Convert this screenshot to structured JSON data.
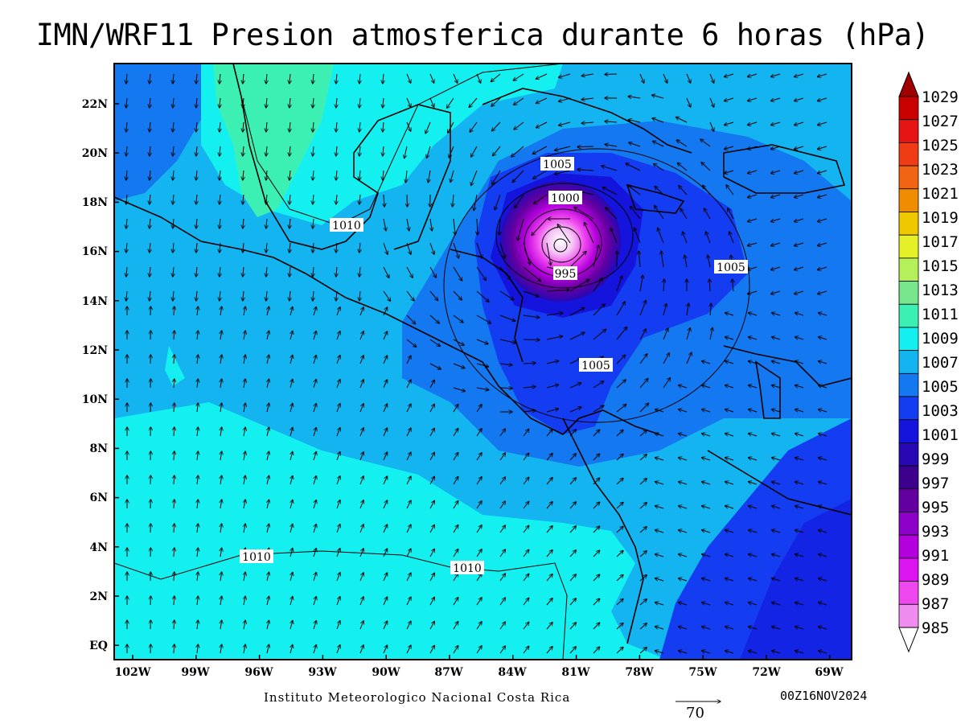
{
  "title": "IMN/WRF11 Presion atmosferica durante 6 horas (hPa)",
  "footer": {
    "institution": "Instituto Meteorologico Nacional Costa Rica",
    "timestamp": "00Z16NOV2024",
    "vector_reference": "70"
  },
  "axes": {
    "lat_ticks": [
      "22N",
      "20N",
      "18N",
      "16N",
      "14N",
      "12N",
      "10N",
      "8N",
      "6N",
      "4N",
      "2N",
      "EQ"
    ],
    "lon_ticks": [
      "102W",
      "99W",
      "96W",
      "93W",
      "90W",
      "87W",
      "84W",
      "81W",
      "78W",
      "75W",
      "72W",
      "69W"
    ]
  },
  "colorbar": {
    "levels": [
      "1029",
      "1027",
      "1025",
      "1023",
      "1021",
      "1019",
      "1017",
      "1015",
      "1013",
      "1011",
      "1009",
      "1007",
      "1005",
      "1003",
      "1001",
      "999",
      "997",
      "995",
      "993",
      "991",
      "989",
      "987",
      "985"
    ],
    "colors": [
      "#a00000",
      "#c80000",
      "#e61414",
      "#f03c14",
      "#f06414",
      "#f08c00",
      "#f0c800",
      "#e6f028",
      "#b4f05a",
      "#78e68c",
      "#3cf0b4",
      "#14f0f0",
      "#14b4f0",
      "#1478f0",
      "#143cf0",
      "#1414dc",
      "#2808b4",
      "#3c008c",
      "#6400a0",
      "#8c00c8",
      "#b400dc",
      "#dc14f0",
      "#f046f0",
      "#f08cf0",
      "#f5c8f5"
    ]
  },
  "contour_labels": [
    "1005",
    "1000",
    "995",
    "1005",
    "1005",
    "1010",
    "1010",
    "1010"
  ],
  "colors": {
    "cyan": "#14f0f0",
    "light_blue": "#14b4f0",
    "mid_blue": "#1478f0",
    "blue": "#143cf0",
    "deep_blue": "#1414dc",
    "green": "#3cf0b4",
    "low_center": "#dc14f0"
  }
}
